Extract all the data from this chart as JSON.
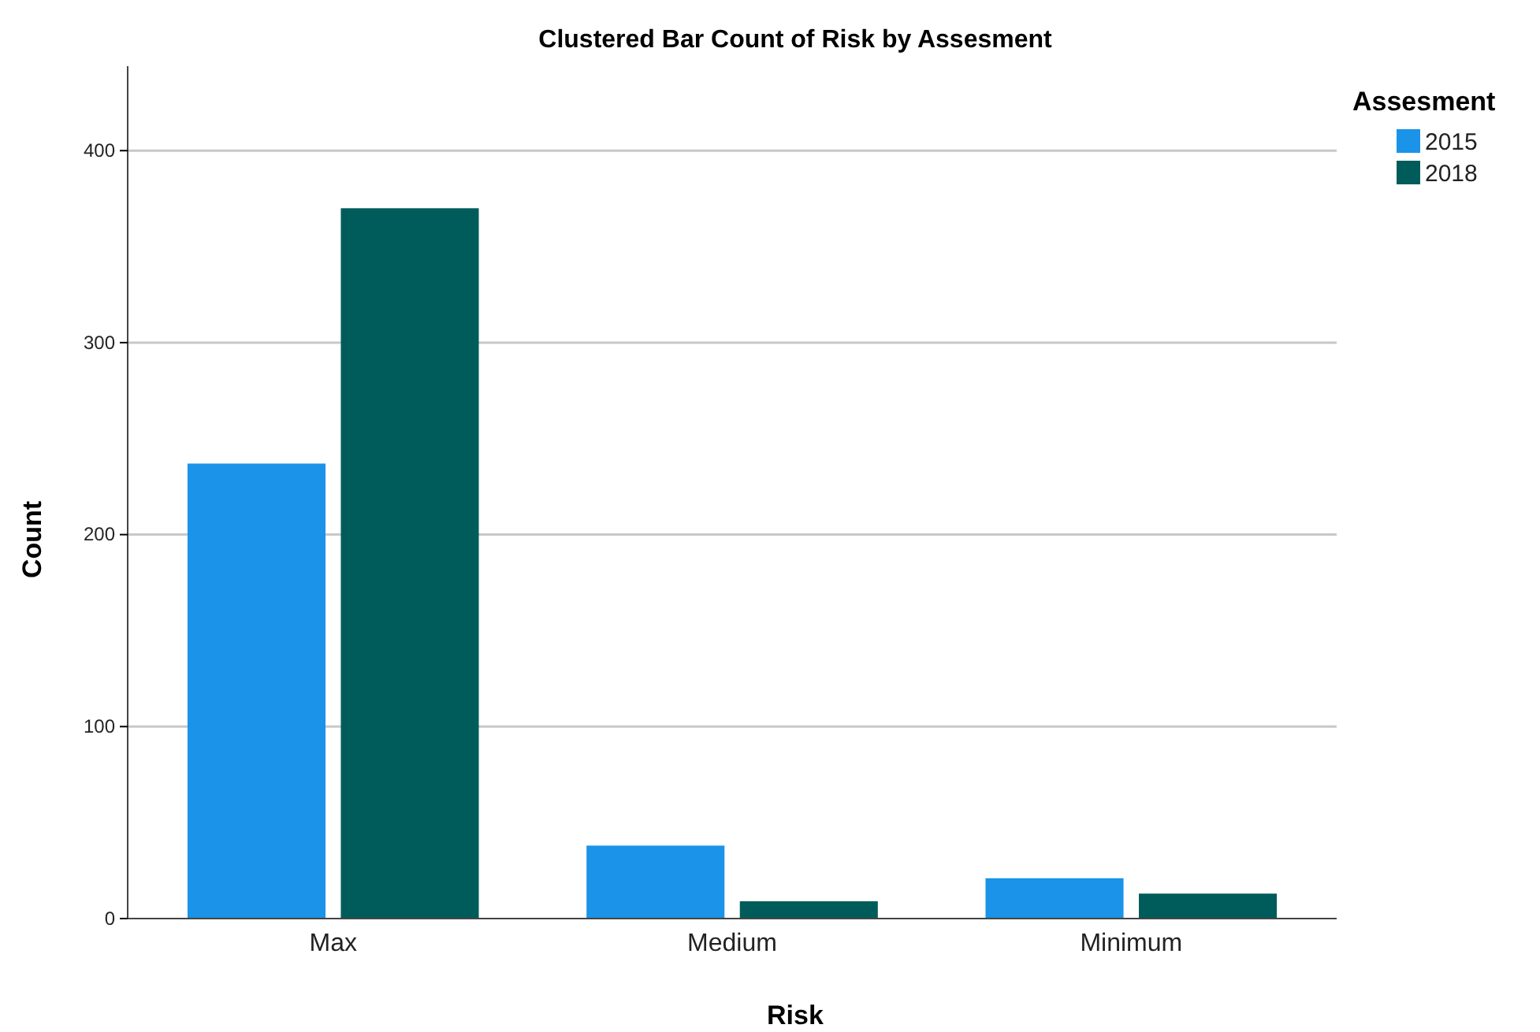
{
  "chart_data": {
    "type": "bar",
    "title": "Clustered Bar Count of Risk by Assesment",
    "xlabel": "Risk",
    "ylabel": "Count",
    "legend_title": "Assesment",
    "categories": [
      "Max",
      "Medium",
      "Minimum"
    ],
    "series": [
      {
        "name": "2015",
        "color": "#1a93e8",
        "values": [
          237,
          38,
          21
        ]
      },
      {
        "name": "2018",
        "color": "#005c5a",
        "values": [
          370,
          9,
          13
        ]
      }
    ],
    "ylim": [
      0,
      444
    ],
    "yticks": [
      0,
      100,
      200,
      300,
      400
    ],
    "grid": "y",
    "legend": "top right"
  }
}
